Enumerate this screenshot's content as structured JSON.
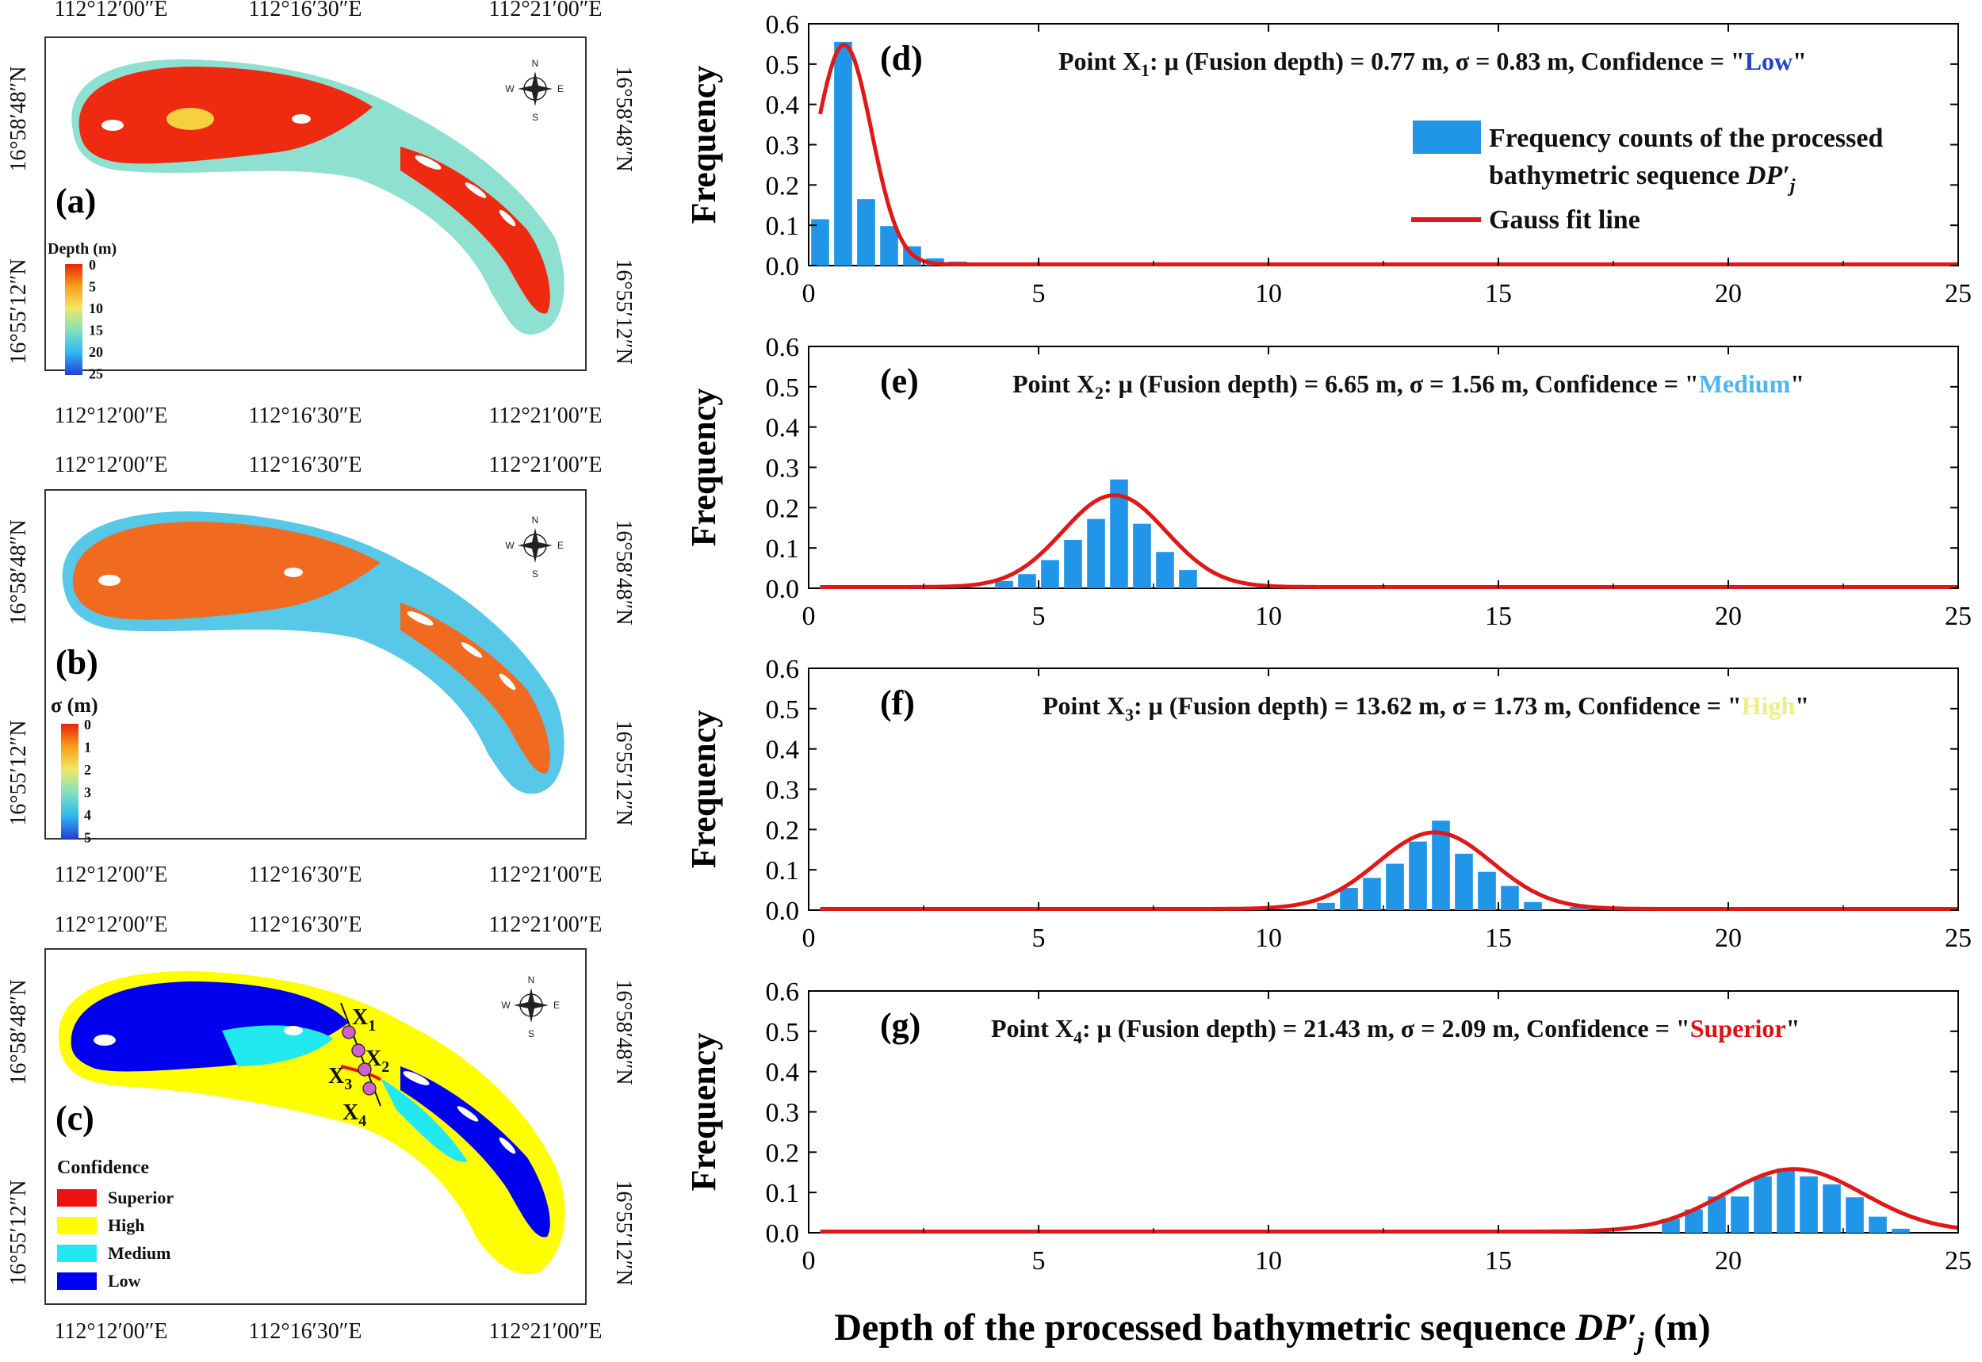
{
  "maps": {
    "coords_top": [
      "112°12′00″E",
      "112°16′30″E",
      "112°21′00″E"
    ],
    "coords_bottom": [
      "112°12′00″E",
      "112°16′30″E",
      "112°21′00″E"
    ],
    "coords_left": [
      "16°58′48″N",
      "16°55′12″N"
    ],
    "coords_right": [
      "16°58′48″N",
      "16°55′12″N"
    ],
    "compass": {
      "n": "N",
      "s": "S",
      "e": "E",
      "w": "W"
    },
    "panel_a": {
      "letter": "(a)",
      "legend_title": "Depth (m)",
      "legend_ticks": [
        "0",
        "5",
        "10",
        "15",
        "20",
        "25"
      ]
    },
    "panel_b": {
      "letter": "(b)",
      "legend_title": "σ (m)",
      "legend_ticks": [
        "0",
        "1",
        "2",
        "3",
        "4",
        "5"
      ]
    },
    "panel_c": {
      "letter": "(c)",
      "legend_title": "Confidence",
      "classes": [
        {
          "label": "Superior",
          "color": "#ee1111"
        },
        {
          "label": "High",
          "color": "#ffff00"
        },
        {
          "label": "Medium",
          "color": "#22e8f0"
        },
        {
          "label": "Low",
          "color": "#0000ee"
        }
      ],
      "points": [
        {
          "letter": "X",
          "sub": "1"
        },
        {
          "letter": "X",
          "sub": "2"
        },
        {
          "letter": "X",
          "sub": "3"
        },
        {
          "letter": "X",
          "sub": "4"
        }
      ]
    }
  },
  "chart_data": [
    {
      "type": "bar",
      "panel": "(d)",
      "point": "X",
      "point_sub": "1",
      "annotation": {
        "text": ": μ (Fusion depth) = 0.77 m, σ = 0.83 m, Confidence = \"",
        "conf": "Low",
        "close": "\"",
        "conf_color": "#2244cc"
      },
      "mu": 0.77,
      "sigma": 0.83,
      "peak": 0.545,
      "bin_centers": [
        0.25,
        0.75,
        1.25,
        1.75,
        2.25,
        2.75,
        3.25,
        3.75
      ],
      "values": [
        0.115,
        0.555,
        0.165,
        0.098,
        0.048,
        0.018,
        0.01,
        0.003
      ],
      "xlim": [
        0,
        25
      ],
      "ylim": [
        0,
        0.6
      ],
      "xticks": [
        "0",
        "5",
        "10",
        "15",
        "20",
        "25"
      ],
      "yticks": [
        "0.0",
        "0.1",
        "0.2",
        "0.3",
        "0.4",
        "0.5",
        "0.6"
      ],
      "ylabel": "Frequency",
      "legend": [
        {
          "kind": "bar",
          "line1": "Frequency counts of the processed",
          "line2": "bathymetric sequence ",
          "symbol": "DP′",
          "symbol_sub": "j"
        },
        {
          "kind": "line",
          "label": "Gauss fit line"
        }
      ]
    },
    {
      "type": "bar",
      "panel": "(e)",
      "point": "X",
      "point_sub": "2",
      "annotation": {
        "text": ": μ (Fusion depth) = 6.65 m, σ = 1.56 m, Confidence = \"",
        "conf": "Medium",
        "close": "\"",
        "conf_color": "#4cb6ee"
      },
      "mu": 6.65,
      "sigma": 1.56,
      "peak": 0.228,
      "bin_centers": [
        4.25,
        4.75,
        5.25,
        5.75,
        6.25,
        6.75,
        7.25,
        7.75,
        8.25
      ],
      "values": [
        0.018,
        0.035,
        0.07,
        0.12,
        0.172,
        0.27,
        0.16,
        0.09,
        0.045
      ],
      "xlim": [
        0,
        25
      ],
      "ylim": [
        0,
        0.6
      ],
      "xticks": [
        "0",
        "5",
        "10",
        "15",
        "20",
        "25"
      ],
      "yticks": [
        "0.0",
        "0.1",
        "0.2",
        "0.3",
        "0.4",
        "0.5",
        "0.6"
      ],
      "ylabel": "Frequency"
    },
    {
      "type": "bar",
      "panel": "(f)",
      "point": "X",
      "point_sub": "3",
      "annotation": {
        "text": ": μ (Fusion depth) = 13.62 m, σ = 1.73 m, Confidence = \"",
        "conf": "High",
        "close": "\"",
        "conf_color": "#eeee88"
      },
      "mu": 13.62,
      "sigma": 1.73,
      "peak": 0.19,
      "bin_centers": [
        11.25,
        11.75,
        12.25,
        12.75,
        13.25,
        13.75,
        14.25,
        14.75,
        15.25,
        15.75,
        16.75
      ],
      "values": [
        0.018,
        0.055,
        0.08,
        0.115,
        0.17,
        0.222,
        0.14,
        0.095,
        0.06,
        0.02,
        0.008
      ],
      "xlim": [
        0,
        25
      ],
      "ylim": [
        0,
        0.6
      ],
      "xticks": [
        "0",
        "5",
        "10",
        "15",
        "20",
        "25"
      ],
      "yticks": [
        "0.0",
        "0.1",
        "0.2",
        "0.3",
        "0.4",
        "0.5",
        "0.6"
      ],
      "ylabel": "Frequency"
    },
    {
      "type": "bar",
      "panel": "(g)",
      "point": "X",
      "point_sub": "4",
      "annotation": {
        "text": ": μ (Fusion depth) = 21.43 m, σ = 2.09 m, Confidence = \"",
        "conf": "Superior",
        "close": "\"",
        "conf_color": "#dd1111"
      },
      "mu": 21.43,
      "sigma": 2.09,
      "peak": 0.155,
      "bin_centers": [
        18.75,
        19.25,
        19.75,
        20.25,
        20.75,
        21.25,
        21.75,
        22.25,
        22.75,
        23.25,
        23.75
      ],
      "values": [
        0.035,
        0.058,
        0.09,
        0.09,
        0.14,
        0.16,
        0.14,
        0.12,
        0.088,
        0.04,
        0.01
      ],
      "xlim": [
        0,
        25
      ],
      "ylim": [
        0,
        0.6
      ],
      "xticks": [
        "0",
        "5",
        "10",
        "15",
        "20",
        "25"
      ],
      "yticks": [
        "0.0",
        "0.1",
        "0.2",
        "0.3",
        "0.4",
        "0.5",
        "0.6"
      ],
      "ylabel": "Frequency",
      "xlabel": "Depth of the processed bathymetric sequence ",
      "xlabel_symbol": "DP′",
      "xlabel_sub": "j",
      "xlabel_unit": "  (m)"
    }
  ]
}
